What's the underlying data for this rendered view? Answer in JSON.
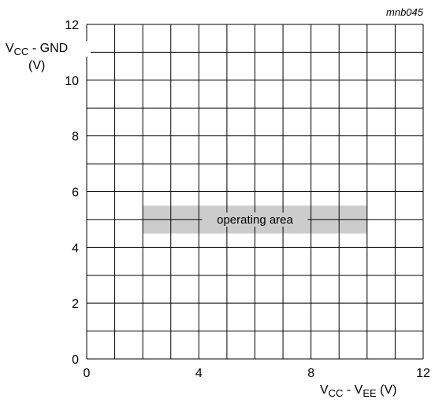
{
  "chart_data": {
    "type": "area",
    "figure_id": "mnb045",
    "x_axis": {
      "range": [
        0,
        12
      ],
      "major_ticks": [
        0,
        4,
        8,
        12
      ],
      "tick_labels": [
        "0",
        "4",
        "8",
        "12"
      ],
      "grid_step": 1,
      "label": {
        "main_left": "V",
        "sub_left": "CC",
        "mid": " - ",
        "main_right": "V",
        "sub_right": "EE",
        "unit": " (V)"
      }
    },
    "y_axis": {
      "range": [
        0,
        12
      ],
      "major_ticks": [
        0,
        2,
        4,
        6,
        8,
        10,
        12
      ],
      "tick_labels": [
        "0",
        "2",
        "4",
        "6",
        "8",
        "10",
        "12"
      ],
      "grid_step": 1,
      "label": {
        "main": "V",
        "sub": "CC",
        "rest": " - GND",
        "unit": "(V)"
      }
    },
    "grid": true,
    "region": {
      "label": "operating area",
      "x_range": [
        2,
        10
      ],
      "y_range": [
        4.5,
        5.5
      ],
      "color": "#cccccc"
    },
    "colors": {
      "grid": "#000000",
      "text": "#000000"
    }
  }
}
